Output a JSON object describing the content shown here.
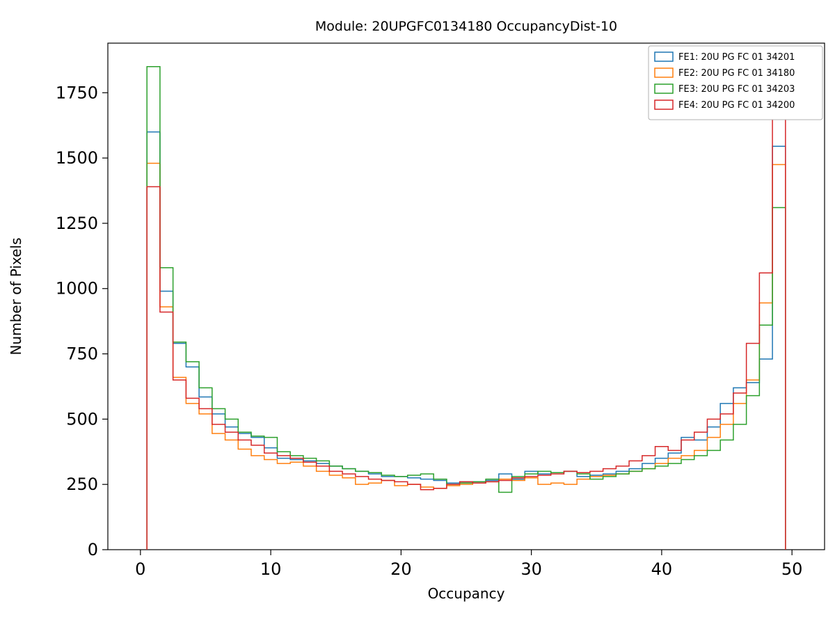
{
  "figure": {
    "background": "#ffffff"
  },
  "chart_data": {
    "type": "bar",
    "style": "step-histogram",
    "title": "Module: 20UPGFC0134180 OccupancyDist-10",
    "xlabel": "Occupancy",
    "ylabel": "Number of Pixels",
    "xlim": [
      -2.5,
      52.5
    ],
    "ylim": [
      0,
      1940
    ],
    "x_ticks": [
      0,
      10,
      20,
      30,
      40,
      50
    ],
    "y_ticks": [
      0,
      250,
      500,
      750,
      1000,
      1250,
      1500,
      1750
    ],
    "bin_start": 0.5,
    "bin_width": 1,
    "grid": false,
    "legend_position": "upper right",
    "series": [
      {
        "name": "FE1: 20U PG FC 01 34201",
        "color": "#1f77b4",
        "values": [
          1600,
          990,
          790,
          700,
          585,
          520,
          470,
          445,
          430,
          390,
          350,
          345,
          340,
          330,
          320,
          310,
          300,
          290,
          280,
          280,
          275,
          270,
          265,
          255,
          260,
          260,
          265,
          290,
          270,
          300,
          290,
          295,
          300,
          280,
          285,
          290,
          300,
          310,
          330,
          350,
          370,
          430,
          420,
          470,
          560,
          620,
          640,
          730,
          1545
        ]
      },
      {
        "name": "FE2: 20U PG FC 01 34180",
        "color": "#ff7f0e",
        "values": [
          1480,
          930,
          660,
          560,
          520,
          445,
          420,
          385,
          360,
          345,
          330,
          335,
          320,
          300,
          285,
          275,
          250,
          255,
          265,
          245,
          250,
          240,
          235,
          245,
          250,
          255,
          260,
          270,
          265,
          275,
          250,
          255,
          250,
          270,
          280,
          285,
          290,
          300,
          310,
          330,
          350,
          360,
          380,
          430,
          480,
          560,
          650,
          945,
          1475
        ]
      },
      {
        "name": "FE3: 20U PG FC 01 34203",
        "color": "#2ca02c",
        "values": [
          1850,
          1080,
          795,
          720,
          620,
          540,
          500,
          450,
          435,
          430,
          375,
          360,
          350,
          340,
          320,
          310,
          300,
          295,
          285,
          280,
          285,
          290,
          270,
          250,
          255,
          260,
          270,
          220,
          280,
          290,
          300,
          295,
          300,
          290,
          270,
          280,
          290,
          300,
          310,
          320,
          330,
          345,
          360,
          380,
          420,
          480,
          590,
          860,
          1310
        ]
      },
      {
        "name": "FE4: 20U PG FC 01 34200",
        "color": "#d62728",
        "values": [
          1390,
          910,
          650,
          580,
          540,
          480,
          450,
          420,
          400,
          370,
          360,
          350,
          335,
          320,
          300,
          290,
          280,
          270,
          265,
          260,
          250,
          230,
          235,
          250,
          260,
          255,
          260,
          265,
          275,
          280,
          285,
          290,
          300,
          295,
          300,
          310,
          320,
          340,
          360,
          395,
          380,
          420,
          450,
          500,
          520,
          600,
          790,
          1060,
          1780
        ]
      }
    ]
  }
}
